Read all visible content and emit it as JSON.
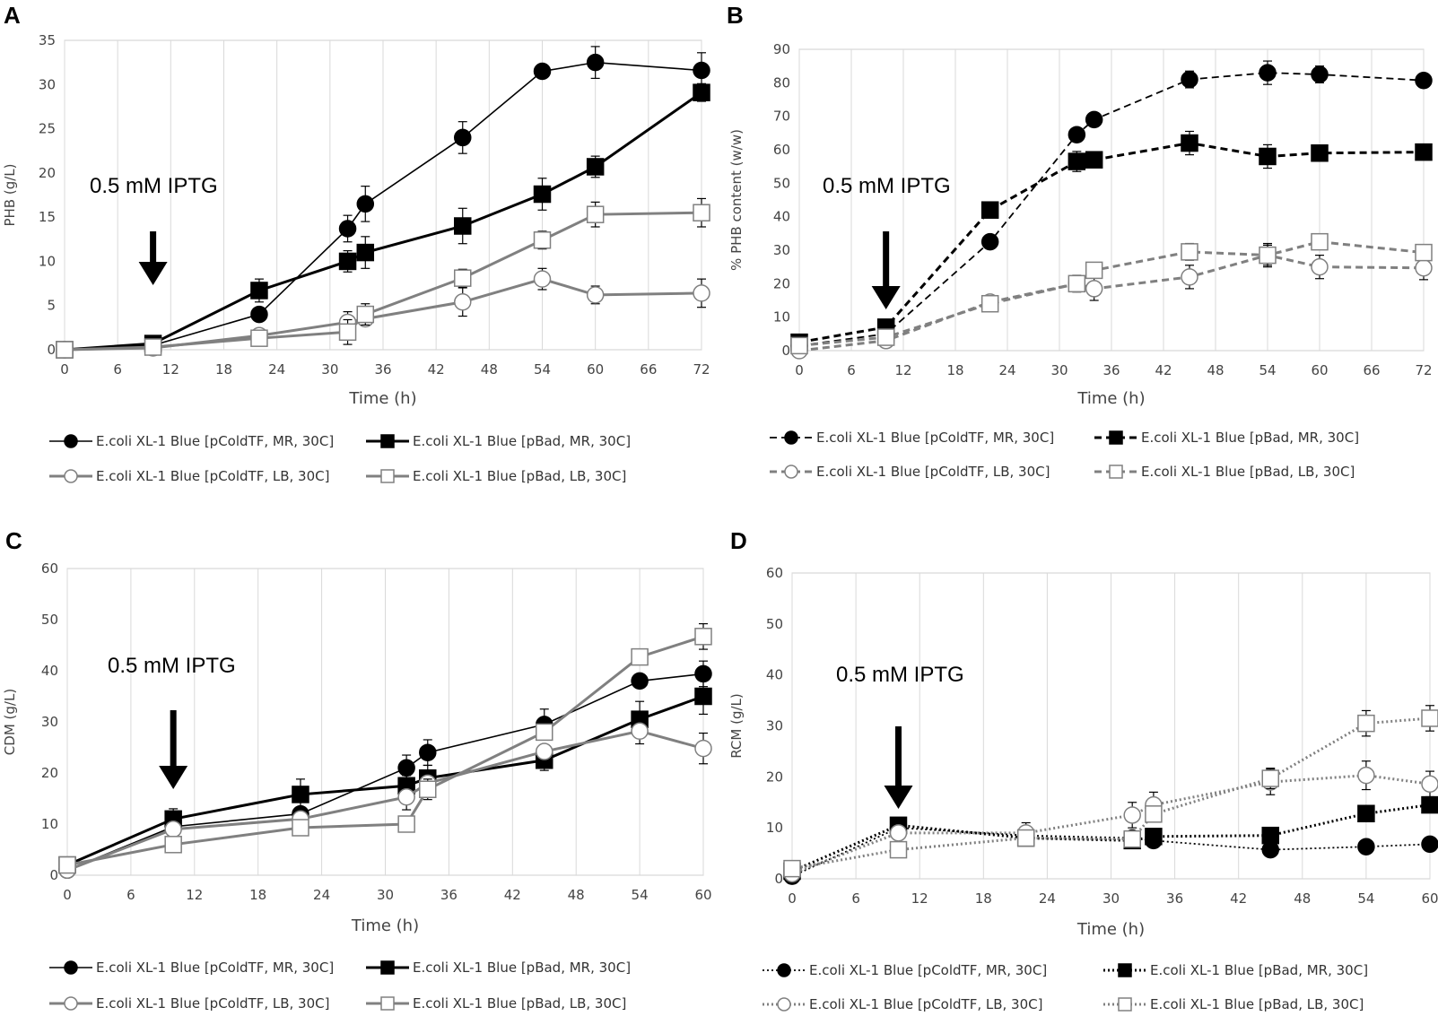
{
  "chart_data": [
    {
      "panel": "A",
      "type": "line",
      "ylabel": "PHB (g/L)",
      "xlabel": "Time (h)",
      "xlim": [
        0,
        72
      ],
      "ylim": [
        0,
        35
      ],
      "xticks": [
        0,
        6,
        12,
        18,
        24,
        30,
        36,
        42,
        48,
        54,
        60,
        66,
        72
      ],
      "yticks": [
        0,
        5,
        10,
        15,
        20,
        25,
        30,
        35
      ],
      "annotation": {
        "text": "0.5 mM IPTG",
        "arrow_x": 10
      },
      "series": [
        {
          "name": "E.coli XL-1 Blue [pColdTF, MR, 30C]",
          "color": "#000000",
          "marker": "circle",
          "filled": true,
          "dash": "solid",
          "width": 1.6,
          "x": [
            0,
            10,
            22,
            32,
            34,
            45,
            54,
            60,
            72
          ],
          "y": [
            0,
            0.5,
            4,
            13.7,
            16.5,
            24,
            31.5,
            32.5,
            31.6
          ],
          "err": [
            0,
            0,
            0,
            1.5,
            2,
            1.8,
            0,
            1.8,
            2
          ]
        },
        {
          "name": "E.coli XL-1 Blue [pBad, MR, 30C]",
          "color": "#000000",
          "marker": "square",
          "filled": true,
          "dash": "solid",
          "width": 3,
          "x": [
            0,
            10,
            22,
            32,
            34,
            45,
            54,
            60,
            72
          ],
          "y": [
            0,
            0.7,
            6.7,
            10,
            11,
            14,
            17.6,
            20.7,
            29.1
          ],
          "err": [
            0,
            0,
            1.3,
            1.2,
            1.8,
            2,
            1.8,
            1.2,
            1
          ]
        },
        {
          "name": "E.coli XL-1 Blue [pColdTF, LB, 30C]",
          "color": "#808080",
          "marker": "circle",
          "filled": false,
          "dash": "solid",
          "width": 3,
          "x": [
            0,
            10,
            22,
            32,
            34,
            45,
            54,
            60,
            72
          ],
          "y": [
            0,
            0.2,
            1.6,
            3.1,
            3.5,
            5.4,
            8,
            6.2,
            6.4
          ],
          "err": [
            0,
            0,
            0,
            1.2,
            0.5,
            1.6,
            1.2,
            1,
            1.6
          ]
        },
        {
          "name": "E.coli XL-1 Blue [pBad, LB, 30C]",
          "color": "#808080",
          "marker": "square",
          "filled": false,
          "dash": "solid",
          "width": 3,
          "x": [
            0,
            10,
            22,
            32,
            34,
            45,
            54,
            60,
            72
          ],
          "y": [
            0,
            0.3,
            1.3,
            2,
            4,
            8.1,
            12.4,
            15.3,
            15.5
          ],
          "err": [
            0,
            0,
            0,
            1.4,
            1.2,
            1,
            1,
            1.4,
            1.6
          ]
        }
      ]
    },
    {
      "panel": "B",
      "type": "line",
      "ylabel": "% PHB content (w/w)",
      "xlabel": "Time (h)",
      "xlim": [
        0,
        72
      ],
      "ylim": [
        0,
        90
      ],
      "xticks": [
        0,
        6,
        12,
        18,
        24,
        30,
        36,
        42,
        48,
        54,
        60,
        66,
        72
      ],
      "yticks": [
        0,
        10,
        20,
        30,
        40,
        50,
        60,
        70,
        80,
        90
      ],
      "annotation": {
        "text": "0.5 mM IPTG",
        "arrow_x": 10
      },
      "series": [
        {
          "name": "E.coli XL-1 Blue [pColdTF, MR, 30C]",
          "color": "#000000",
          "marker": "circle",
          "filled": true,
          "dash": "8,5",
          "width": 1.8,
          "x": [
            0,
            10,
            22,
            32,
            34,
            45,
            54,
            60,
            72
          ],
          "y": [
            1.5,
            5,
            32.5,
            64.5,
            69,
            81,
            83,
            82.5,
            80.7
          ],
          "err": [
            0,
            0,
            2,
            0,
            2,
            2.5,
            3.5,
            2.5,
            0
          ]
        },
        {
          "name": "E.coli XL-1 Blue [pBad, MR, 30C]",
          "color": "#000000",
          "marker": "square",
          "filled": true,
          "dash": "8,5",
          "width": 3,
          "x": [
            0,
            10,
            22,
            32,
            34,
            45,
            54,
            60,
            72
          ],
          "y": [
            2.5,
            7,
            42,
            56.5,
            57,
            62,
            58,
            59,
            59.3
          ],
          "err": [
            0,
            0,
            0,
            3,
            2,
            3.5,
            3.5,
            2,
            0
          ]
        },
        {
          "name": "E.coli XL-1 Blue [pColdTF, LB, 30C]",
          "color": "#808080",
          "marker": "circle",
          "filled": false,
          "dash": "8,5",
          "width": 3,
          "x": [
            0,
            10,
            22,
            32,
            34,
            45,
            54,
            60,
            72
          ],
          "y": [
            0,
            3,
            14.5,
            20,
            18.5,
            22,
            28.5,
            25,
            24.7
          ],
          "err": [
            0,
            0,
            0,
            0,
            3.5,
            3.5,
            3,
            3.5,
            3.5
          ]
        },
        {
          "name": "E.coli XL-1 Blue [pBad, LB, 30C]",
          "color": "#808080",
          "marker": "square",
          "filled": false,
          "dash": "8,5",
          "width": 3,
          "x": [
            0,
            10,
            22,
            32,
            34,
            45,
            54,
            60,
            72
          ],
          "y": [
            1.5,
            4,
            14,
            20,
            24,
            29.5,
            28.5,
            32.5,
            29.3
          ],
          "err": [
            0,
            0,
            0,
            2.5,
            0,
            2.5,
            3.5,
            2,
            0
          ]
        }
      ]
    },
    {
      "panel": "C",
      "type": "line",
      "ylabel": "CDM (g/L)",
      "xlabel": "Time (h)",
      "xlim": [
        0,
        60
      ],
      "ylim": [
        0,
        60
      ],
      "xticks": [
        0,
        6,
        12,
        18,
        24,
        30,
        36,
        42,
        48,
        54,
        60
      ],
      "yticks": [
        0,
        10,
        20,
        30,
        40,
        50,
        60
      ],
      "annotation": {
        "text": "0.5 mM IPTG",
        "arrow_x": 10
      },
      "series": [
        {
          "name": "E.coli XL-1 Blue [pColdTF, MR, 30C]",
          "color": "#000000",
          "marker": "circle",
          "filled": true,
          "dash": "solid",
          "width": 1.6,
          "x": [
            0,
            10,
            22,
            32,
            34,
            45,
            54,
            60
          ],
          "y": [
            1,
            9.5,
            12,
            21,
            24,
            29.5,
            38,
            39.4
          ],
          "err": [
            0,
            0,
            0,
            2.5,
            2.5,
            3,
            0,
            2.5
          ]
        },
        {
          "name": "E.coli XL-1 Blue [pBad, MR, 30C]",
          "color": "#000000",
          "marker": "square",
          "filled": true,
          "dash": "solid",
          "width": 3,
          "x": [
            0,
            10,
            22,
            32,
            34,
            45,
            54,
            60
          ],
          "y": [
            2,
            11,
            15.8,
            17.5,
            19,
            22.5,
            30.5,
            35
          ],
          "err": [
            0,
            2,
            3,
            2,
            2.5,
            2,
            3.5,
            3.5
          ]
        },
        {
          "name": "E.coli XL-1 Blue [pColdTF, LB, 30C]",
          "color": "#808080",
          "marker": "circle",
          "filled": false,
          "dash": "solid",
          "width": 3,
          "x": [
            0,
            10,
            22,
            32,
            34,
            45,
            54,
            60
          ],
          "y": [
            1,
            9,
            11,
            15.3,
            18,
            24.2,
            28.2,
            24.8
          ],
          "err": [
            0,
            0,
            0,
            2.5,
            2.5,
            0,
            2.5,
            3
          ]
        },
        {
          "name": "E.coli XL-1 Blue [pBad, LB, 30C]",
          "color": "#808080",
          "marker": "square",
          "filled": false,
          "dash": "solid",
          "width": 3,
          "x": [
            0,
            10,
            22,
            32,
            34,
            45,
            54,
            60
          ],
          "y": [
            2,
            6,
            9.3,
            10,
            16.8,
            28,
            42.7,
            46.7
          ],
          "err": [
            0,
            0,
            0,
            0,
            2,
            0,
            1.5,
            2.5
          ]
        }
      ]
    },
    {
      "panel": "D",
      "type": "line",
      "ylabel": "RCM (g/L)",
      "xlabel": "Time (h)",
      "xlim": [
        0,
        60
      ],
      "ylim": [
        0,
        60
      ],
      "xticks": [
        0,
        6,
        12,
        18,
        24,
        30,
        36,
        42,
        48,
        54,
        60
      ],
      "yticks": [
        0,
        10,
        20,
        30,
        40,
        50,
        60
      ],
      "annotation": {
        "text": "0.5 mM IPTG",
        "arrow_x": 10
      },
      "series": [
        {
          "name": "E.coli XL-1 Blue [pColdTF, MR, 30C]",
          "color": "#000000",
          "marker": "circle",
          "filled": true,
          "dash": "2,3",
          "width": 1.8,
          "x": [
            0,
            10,
            22,
            32,
            34,
            45,
            54,
            60
          ],
          "y": [
            0.5,
            10,
            8.5,
            8,
            7.5,
            5.7,
            6.3,
            6.8
          ],
          "err": [
            0,
            0,
            0,
            0,
            0,
            0,
            0,
            0
          ]
        },
        {
          "name": "E.coli XL-1 Blue [pBad, MR, 30C]",
          "color": "#000000",
          "marker": "square",
          "filled": true,
          "dash": "2,3",
          "width": 3,
          "x": [
            0,
            10,
            22,
            32,
            34,
            45,
            54,
            60
          ],
          "y": [
            1.5,
            10.5,
            8,
            7.5,
            8.3,
            8.5,
            12.8,
            14.5
          ],
          "err": [
            0,
            0,
            0,
            0,
            0,
            0,
            0,
            0
          ]
        },
        {
          "name": "E.coli XL-1 Blue [pColdTF, LB, 30C]",
          "color": "#808080",
          "marker": "circle",
          "filled": false,
          "dash": "2,3",
          "width": 3,
          "x": [
            0,
            10,
            22,
            32,
            34,
            45,
            54,
            60
          ],
          "y": [
            1,
            9,
            9,
            12.5,
            14.5,
            19,
            20.3,
            18.6
          ],
          "err": [
            0,
            0,
            2,
            2.5,
            2.5,
            2.5,
            2.8,
            2.5
          ]
        },
        {
          "name": "E.coli XL-1 Blue [pBad, LB, 30C]",
          "color": "#808080",
          "marker": "square",
          "filled": false,
          "dash": "2,3",
          "width": 3,
          "x": [
            0,
            10,
            22,
            32,
            34,
            45,
            54,
            60
          ],
          "y": [
            2,
            5.7,
            8,
            7.8,
            12.7,
            19.7,
            30.5,
            31.5
          ],
          "err": [
            0,
            0,
            0,
            0,
            0,
            2,
            2.5,
            2.5
          ]
        }
      ]
    }
  ]
}
